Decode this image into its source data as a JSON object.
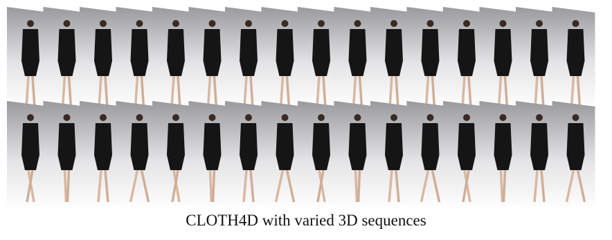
{
  "figure": {
    "caption": "CLOTH4D with varied 3D sequences"
  }
}
